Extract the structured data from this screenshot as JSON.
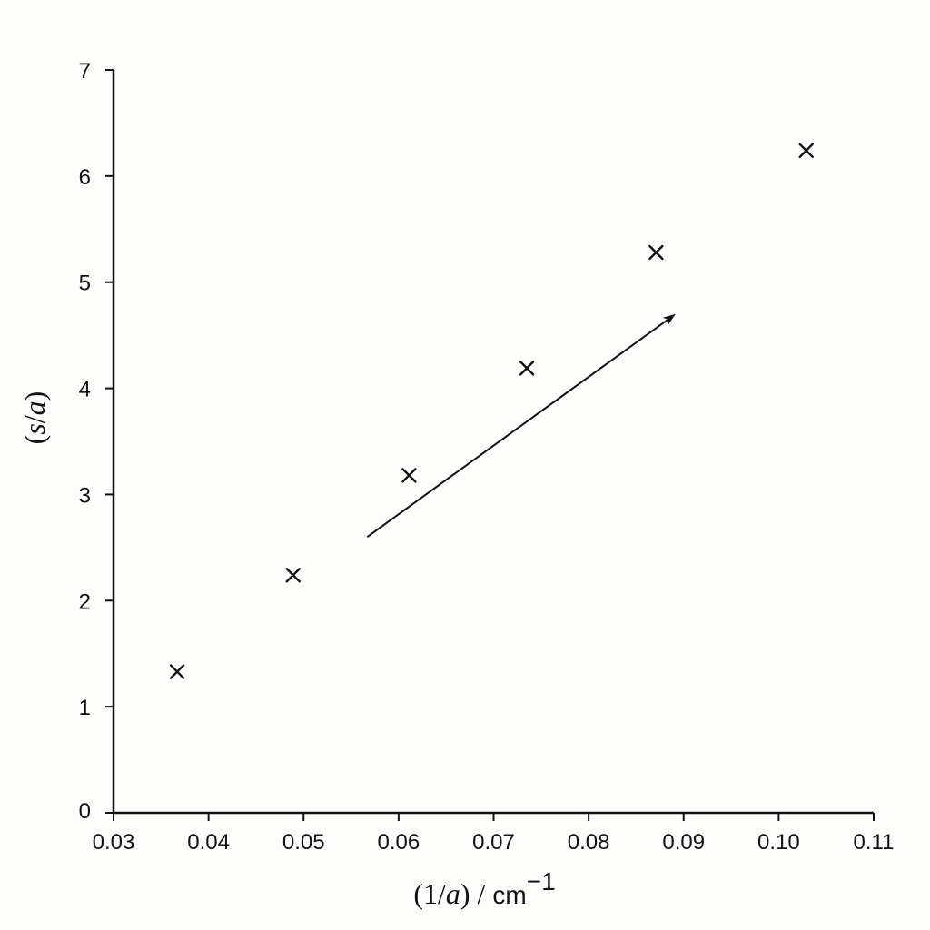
{
  "chart_data": {
    "type": "scatter",
    "title": "",
    "xlabel": {
      "parts": [
        {
          "text": "(1/",
          "italic": false
        },
        {
          "text": "a",
          "italic": true
        },
        {
          "text": ")  /  ",
          "italic": false
        },
        {
          "text": "cm",
          "italic": false,
          "unit": true
        },
        {
          "text": "−1",
          "italic": false,
          "sup": true
        }
      ]
    },
    "ylabel": {
      "parts": [
        {
          "text": "(",
          "italic": false
        },
        {
          "text": "s",
          "italic": true
        },
        {
          "text": "/",
          "italic": false
        },
        {
          "text": "a",
          "italic": true
        },
        {
          "text": ")",
          "italic": false
        }
      ]
    },
    "xlim": [
      0.03,
      0.11
    ],
    "ylim": [
      0,
      7
    ],
    "xticks": [
      0.03,
      0.04,
      0.05,
      0.06,
      0.07,
      0.08,
      0.09,
      0.1,
      0.11
    ],
    "xtick_labels": [
      "0.03",
      "0.04",
      "0.05",
      "0.06",
      "0.07",
      "0.08",
      "0.09",
      "0.10",
      "0.11"
    ],
    "yticks": [
      0,
      1,
      2,
      3,
      4,
      5,
      6,
      7
    ],
    "ytick_labels": [
      "0",
      "1",
      "2",
      "3",
      "4",
      "5",
      "6",
      "7"
    ],
    "grid": false,
    "marker": "x",
    "series": [
      {
        "points": [
          {
            "x": 0.0367,
            "y": 1.33
          },
          {
            "x": 0.0489,
            "y": 2.24
          },
          {
            "x": 0.0611,
            "y": 3.18
          },
          {
            "x": 0.0735,
            "y": 4.19
          },
          {
            "x": 0.0871,
            "y": 5.28
          },
          {
            "x": 0.1029,
            "y": 6.24
          }
        ]
      }
    ],
    "annotations": [
      {
        "type": "arrow",
        "from": {
          "x": 0.0567,
          "y": 2.6
        },
        "to": {
          "x": 0.089,
          "y": 4.69
        }
      }
    ]
  }
}
